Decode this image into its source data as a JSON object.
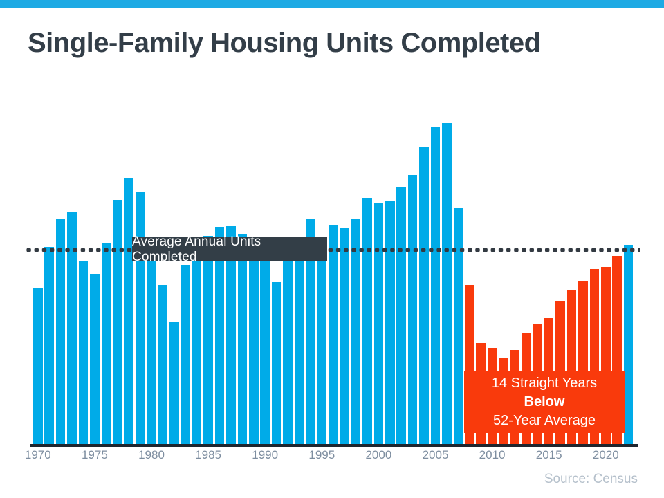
{
  "header": {
    "accent_color": "#1EAAE4"
  },
  "chart_data": {
    "type": "bar",
    "title": "Single-Family Housing Units Completed",
    "xlabel": "",
    "ylabel": "",
    "units": "thousands of single-family housing units completed per year",
    "grid": false,
    "legend": "none",
    "ylim": [
      0,
      1700
    ],
    "x_tick_labels": [
      "1970",
      "1975",
      "1980",
      "1985",
      "1990",
      "1995",
      "2000",
      "2005",
      "2010",
      "2015",
      "2020"
    ],
    "years": [
      1970,
      1971,
      1972,
      1973,
      1974,
      1975,
      1976,
      1977,
      1978,
      1979,
      1980,
      1981,
      1982,
      1983,
      1984,
      1985,
      1986,
      1987,
      1988,
      1989,
      1990,
      1991,
      1992,
      1993,
      1994,
      1995,
      1996,
      1997,
      1998,
      1999,
      2000,
      2001,
      2002,
      2003,
      2004,
      2005,
      2006,
      2007,
      2008,
      2009,
      2010,
      2011,
      2012,
      2013,
      2014,
      2015,
      2016,
      2017,
      2018,
      2019,
      2020,
      2021,
      2022
    ],
    "values_thousands": [
      802,
      1014,
      1160,
      1197,
      940,
      875,
      1034,
      1258,
      1369,
      1301,
      957,
      819,
      632,
      924,
      1025,
      1072,
      1120,
      1123,
      1085,
      1026,
      966,
      838,
      964,
      1039,
      1160,
      1066,
      1129,
      1116,
      1160,
      1270,
      1242,
      1256,
      1325,
      1386,
      1531,
      1636,
      1654,
      1218,
      819,
      520,
      496,
      447,
      483,
      569,
      620,
      648,
      738,
      795,
      840,
      903,
      912,
      970,
      1025
    ],
    "average_line": {
      "label": "Average Annual Units Completed",
      "value_thousands": 1000
    },
    "below_average_years": {
      "start": 2008,
      "end": 2021
    },
    "annotation": {
      "line1": "14 Straight Years",
      "line2": "Below",
      "line3": "52-Year Average"
    },
    "colors": {
      "above_average_bar": "#00ABE8",
      "below_average_bar": "#F93A0C",
      "average_line": "#333A42",
      "label_box_bg": "#333E47",
      "title_text": "#333E48",
      "tick_text": "#7E8EA0",
      "source_text": "#B5C0CB"
    },
    "source": "Source: Census"
  }
}
